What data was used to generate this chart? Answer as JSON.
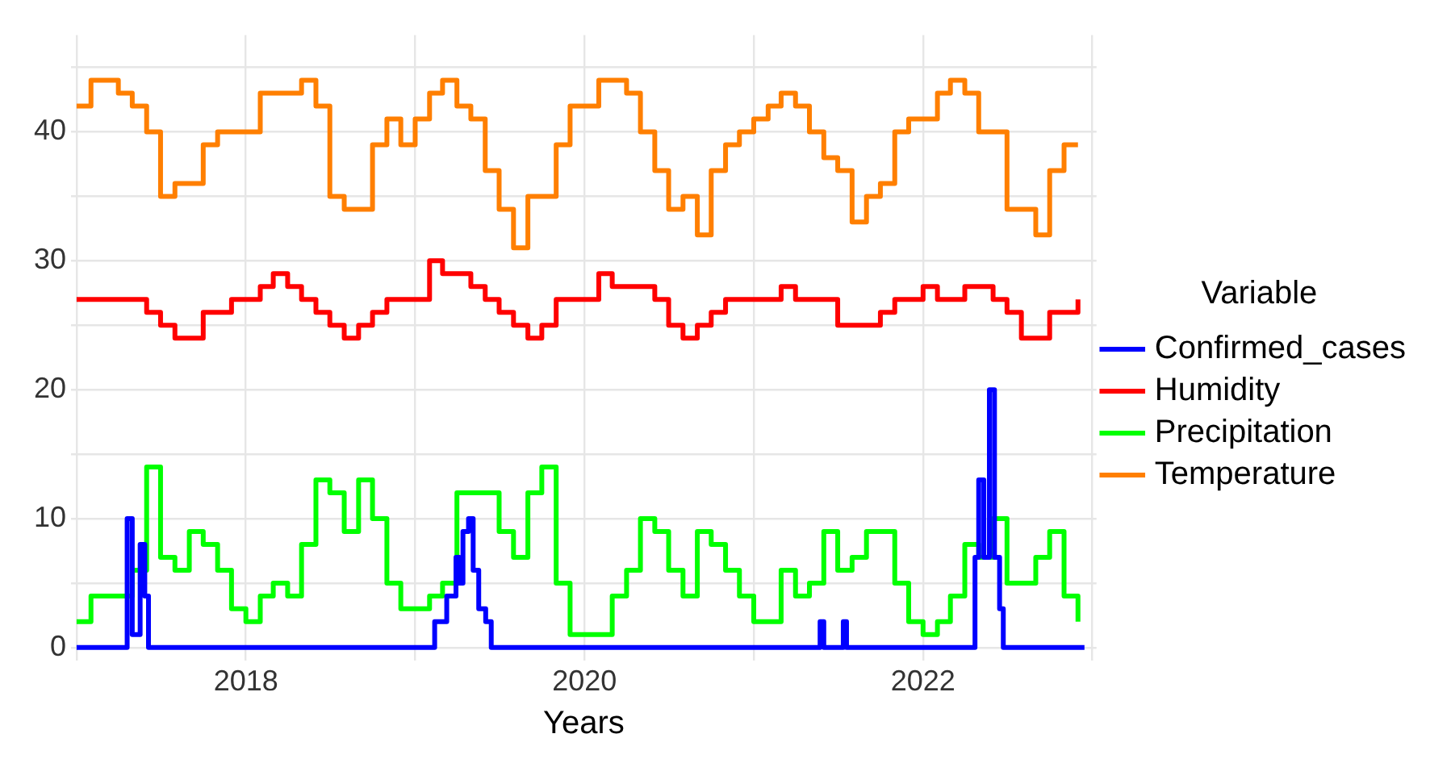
{
  "chart_data": {
    "type": "step",
    "xlabel": "Years",
    "legend_title": "Variable",
    "legend": "right",
    "grid": true,
    "line_style": "solid",
    "marker": "none",
    "x": [
      "2017-01",
      "2017-02",
      "2017-03",
      "2017-04",
      "2017-05",
      "2017-06",
      "2017-07",
      "2017-08",
      "2017-09",
      "2017-10",
      "2017-11",
      "2017-12",
      "2018-01",
      "2018-02",
      "2018-03",
      "2018-04",
      "2018-05",
      "2018-06",
      "2018-07",
      "2018-08",
      "2018-09",
      "2018-10",
      "2018-11",
      "2018-12",
      "2019-01",
      "2019-02",
      "2019-03",
      "2019-04",
      "2019-05",
      "2019-06",
      "2019-07",
      "2019-08",
      "2019-09",
      "2019-10",
      "2019-11",
      "2019-12",
      "2020-01",
      "2020-02",
      "2020-03",
      "2020-04",
      "2020-05",
      "2020-06",
      "2020-07",
      "2020-08",
      "2020-09",
      "2020-10",
      "2020-11",
      "2020-12",
      "2021-01",
      "2021-02",
      "2021-03",
      "2021-04",
      "2021-05",
      "2021-06",
      "2021-07",
      "2021-08",
      "2021-09",
      "2021-10",
      "2021-11",
      "2021-12",
      "2022-01",
      "2022-02",
      "2022-03",
      "2022-04",
      "2022-05",
      "2022-06",
      "2022-07",
      "2022-08",
      "2022-09",
      "2022-10",
      "2022-11",
      "2022-12"
    ],
    "xlim": [
      "2016-12-20",
      "2023-01-10"
    ],
    "xticks": [
      {
        "value": "2017",
        "label": null
      },
      "2018",
      {
        "value": "2019",
        "label": null
      },
      "2020",
      {
        "value": "2021",
        "label": null
      },
      "2022",
      {
        "value": "2023",
        "label": null
      }
    ],
    "ylim": [
      -1,
      47.5
    ],
    "yticks": [
      0,
      {
        "value": 5,
        "label": null
      },
      10,
      {
        "value": 15,
        "label": null
      },
      20,
      {
        "value": 25,
        "label": null
      },
      30,
      {
        "value": 35,
        "label": null
      },
      40,
      {
        "value": 45,
        "label": null
      }
    ],
    "series": [
      {
        "name": "Confirmed_cases",
        "color": "#0000ff",
        "x": [
          "2017-01-01",
          "2017-04-20",
          "2017-05-01",
          "2017-05-18",
          "2017-05-28",
          "2017-06-05",
          "2019-02-12",
          "2019-03-10",
          "2019-03-30",
          "2019-04-06",
          "2019-04-14",
          "2019-04-26",
          "2019-05-06",
          "2019-05-18",
          "2019-06-02",
          "2019-06-14",
          "2021-05-24",
          "2021-06-01",
          "2021-07-13",
          "2021-07-20",
          "2022-04-23",
          "2022-05-01",
          "2022-05-12",
          "2022-05-24",
          "2022-06-04",
          "2022-06-15",
          "2022-06-23",
          "2022-12-15"
        ],
        "values": [
          0,
          10,
          1,
          8,
          4,
          0,
          2,
          4,
          7,
          5,
          9,
          10,
          6,
          3,
          2,
          0,
          2,
          0,
          2,
          0,
          7,
          13,
          7,
          20,
          7,
          3,
          0,
          0
        ]
      },
      {
        "name": "Humidity",
        "color": "#ff0000",
        "values": [
          27,
          27,
          27,
          27,
          27,
          26,
          25,
          24,
          24,
          26,
          26,
          27,
          27,
          28,
          29,
          28,
          27,
          26,
          25,
          24,
          25,
          26,
          27,
          27,
          27,
          30,
          29,
          29,
          28,
          27,
          26,
          25,
          24,
          25,
          27,
          27,
          27,
          29,
          28,
          28,
          28,
          27,
          25,
          24,
          25,
          26,
          27,
          27,
          27,
          27,
          28,
          27,
          27,
          27,
          25,
          25,
          25,
          26,
          27,
          27,
          28,
          27,
          27,
          28,
          28,
          27,
          26,
          24,
          24,
          26,
          26,
          27
        ]
      },
      {
        "name": "Precipitation",
        "color": "#00ff00",
        "values": [
          2,
          4,
          4,
          4,
          6,
          14,
          7,
          6,
          9,
          8,
          6,
          3,
          2,
          4,
          5,
          4,
          8,
          13,
          12,
          9,
          13,
          10,
          5,
          3,
          3,
          4,
          5,
          12,
          12,
          12,
          9,
          7,
          12,
          14,
          5,
          1,
          1,
          1,
          4,
          6,
          10,
          9,
          6,
          4,
          9,
          8,
          6,
          4,
          2,
          2,
          6,
          4,
          5,
          9,
          6,
          7,
          9,
          9,
          5,
          2,
          1,
          2,
          4,
          8,
          7,
          10,
          5,
          5,
          7,
          9,
          4,
          2
        ]
      },
      {
        "name": "Temperature",
        "color": "#ff7f00",
        "values": [
          42,
          44,
          44,
          43,
          42,
          40,
          35,
          36,
          36,
          39,
          40,
          40,
          40,
          43,
          43,
          43,
          44,
          42,
          35,
          34,
          34,
          39,
          41,
          39,
          41,
          43,
          44,
          42,
          41,
          37,
          34,
          31,
          35,
          35,
          39,
          42,
          42,
          44,
          44,
          43,
          40,
          37,
          34,
          35,
          32,
          37,
          39,
          40,
          41,
          42,
          43,
          42,
          40,
          38,
          37,
          33,
          35,
          36,
          40,
          41,
          41,
          43,
          44,
          43,
          40,
          40,
          34,
          34,
          32,
          37,
          39,
          39
        ]
      }
    ]
  }
}
